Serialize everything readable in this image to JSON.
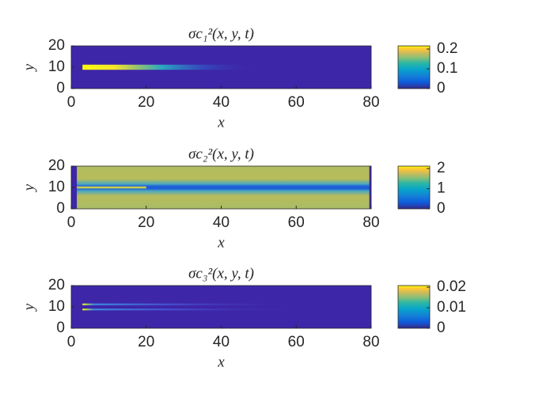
{
  "chart_data": [
    {
      "type": "heatmap",
      "title": "σc₁²(x, y, t)",
      "xlabel": "x",
      "ylabel": "y",
      "xlim": [
        0,
        80
      ],
      "xticks": [
        0,
        20,
        40,
        60,
        80
      ],
      "ylim": [
        0,
        20
      ],
      "yticks": [
        0,
        10,
        20
      ],
      "clim": [
        0,
        0.216
      ],
      "cticks": [
        0,
        0.1,
        0.2
      ]
    },
    {
      "type": "heatmap",
      "title": "σc₂²(x, y, t)",
      "xlabel": "x",
      "ylabel": "y",
      "xlim": [
        0,
        80
      ],
      "xticks": [
        0,
        20,
        40,
        60,
        80
      ],
      "ylim": [
        0,
        20
      ],
      "yticks": [
        0,
        10,
        20
      ],
      "clim": [
        0,
        2.12
      ],
      "cticks": [
        0,
        1,
        2
      ]
    },
    {
      "type": "heatmap",
      "title": "σc₃²(x, y, t)",
      "xlabel": "x",
      "ylabel": "y",
      "xlim": [
        0,
        80
      ],
      "xticks": [
        0,
        20,
        40,
        60,
        80
      ],
      "ylim": [
        0,
        20
      ],
      "yticks": [
        0,
        10,
        20
      ],
      "clim": [
        0,
        0.0208
      ],
      "cticks": [
        0,
        0.01,
        0.02
      ]
    }
  ]
}
